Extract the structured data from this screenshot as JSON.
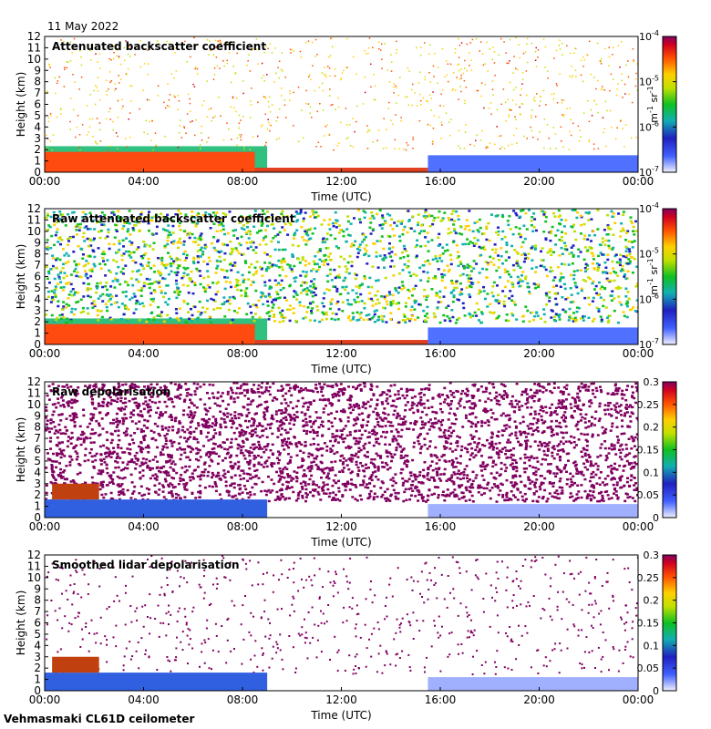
{
  "date": "11 May 2022",
  "footer": "Vehmasmaki CL61D ceilometer",
  "chart_data": [
    {
      "type": "heatmap",
      "title": "Attenuated backscatter coefficient",
      "xlabel": "Time (UTC)",
      "ylabel": "Height (km)",
      "xticks": [
        "00:00",
        "04:00",
        "08:00",
        "12:00",
        "16:00",
        "20:00",
        "00:00"
      ],
      "yticks": [
        "0",
        "1",
        "2",
        "3",
        "4",
        "5",
        "6",
        "7",
        "8",
        "9",
        "10",
        "11",
        "12"
      ],
      "ylim": [
        0,
        12
      ],
      "xlim_hours": [
        0,
        24
      ],
      "colorbar": {
        "scale": "log",
        "range": [
          1e-07,
          0.0001
        ],
        "ticks": [
          {
            "base": "10",
            "exp": "-4"
          },
          {
            "base": "10",
            "exp": "-5"
          },
          {
            "base": "10",
            "exp": "-6"
          },
          {
            "base": "10",
            "exp": "-7"
          }
        ],
        "unit": {
          "m": "m",
          "e1": "-1",
          "sr": "sr",
          "e2": "-1"
        }
      }
    },
    {
      "type": "heatmap",
      "title": "Raw attenuated backscatter coefficient",
      "xlabel": "Time (UTC)",
      "ylabel": "Height (km)",
      "xticks": [
        "00:00",
        "04:00",
        "08:00",
        "12:00",
        "16:00",
        "20:00",
        "00:00"
      ],
      "yticks": [
        "0",
        "1",
        "2",
        "3",
        "4",
        "5",
        "6",
        "7",
        "8",
        "9",
        "10",
        "11",
        "12"
      ],
      "ylim": [
        0,
        12
      ],
      "xlim_hours": [
        0,
        24
      ],
      "colorbar": {
        "scale": "log",
        "range": [
          1e-07,
          0.0001
        ],
        "ticks": [
          {
            "base": "10",
            "exp": "-4"
          },
          {
            "base": "10",
            "exp": "-5"
          },
          {
            "base": "10",
            "exp": "-6"
          },
          {
            "base": "10",
            "exp": "-7"
          }
        ],
        "unit": {
          "m": "m",
          "e1": "-1",
          "sr": "sr",
          "e2": "-1"
        }
      }
    },
    {
      "type": "heatmap",
      "title": "Raw depolarisation",
      "xlabel": "Time (UTC)",
      "ylabel": "Height (km)",
      "xticks": [
        "00:00",
        "04:00",
        "08:00",
        "12:00",
        "16:00",
        "20:00",
        "00:00"
      ],
      "yticks": [
        "0",
        "1",
        "2",
        "3",
        "4",
        "5",
        "6",
        "7",
        "8",
        "9",
        "10",
        "11",
        "12"
      ],
      "ylim": [
        0,
        12
      ],
      "xlim_hours": [
        0,
        24
      ],
      "colorbar": {
        "scale": "linear",
        "range": [
          0,
          0.3
        ],
        "ticks": [
          "0.3",
          "0.25",
          "0.2",
          "0.15",
          "0.1",
          "0.05",
          "0"
        ]
      }
    },
    {
      "type": "heatmap",
      "title": "Smoothed lidar depolarisation",
      "xlabel": "Time (UTC)",
      "ylabel": "Height (km)",
      "xticks": [
        "00:00",
        "04:00",
        "08:00",
        "12:00",
        "16:00",
        "20:00",
        "00:00"
      ],
      "yticks": [
        "0",
        "1",
        "2",
        "3",
        "4",
        "5",
        "6",
        "7",
        "8",
        "9",
        "10",
        "11",
        "12"
      ],
      "ylim": [
        0,
        12
      ],
      "xlim_hours": [
        0,
        24
      ],
      "colorbar": {
        "scale": "linear",
        "range": [
          0,
          0.3
        ],
        "ticks": [
          "0.3",
          "0.25",
          "0.2",
          "0.15",
          "0.1",
          "0.05",
          "0"
        ]
      }
    }
  ]
}
